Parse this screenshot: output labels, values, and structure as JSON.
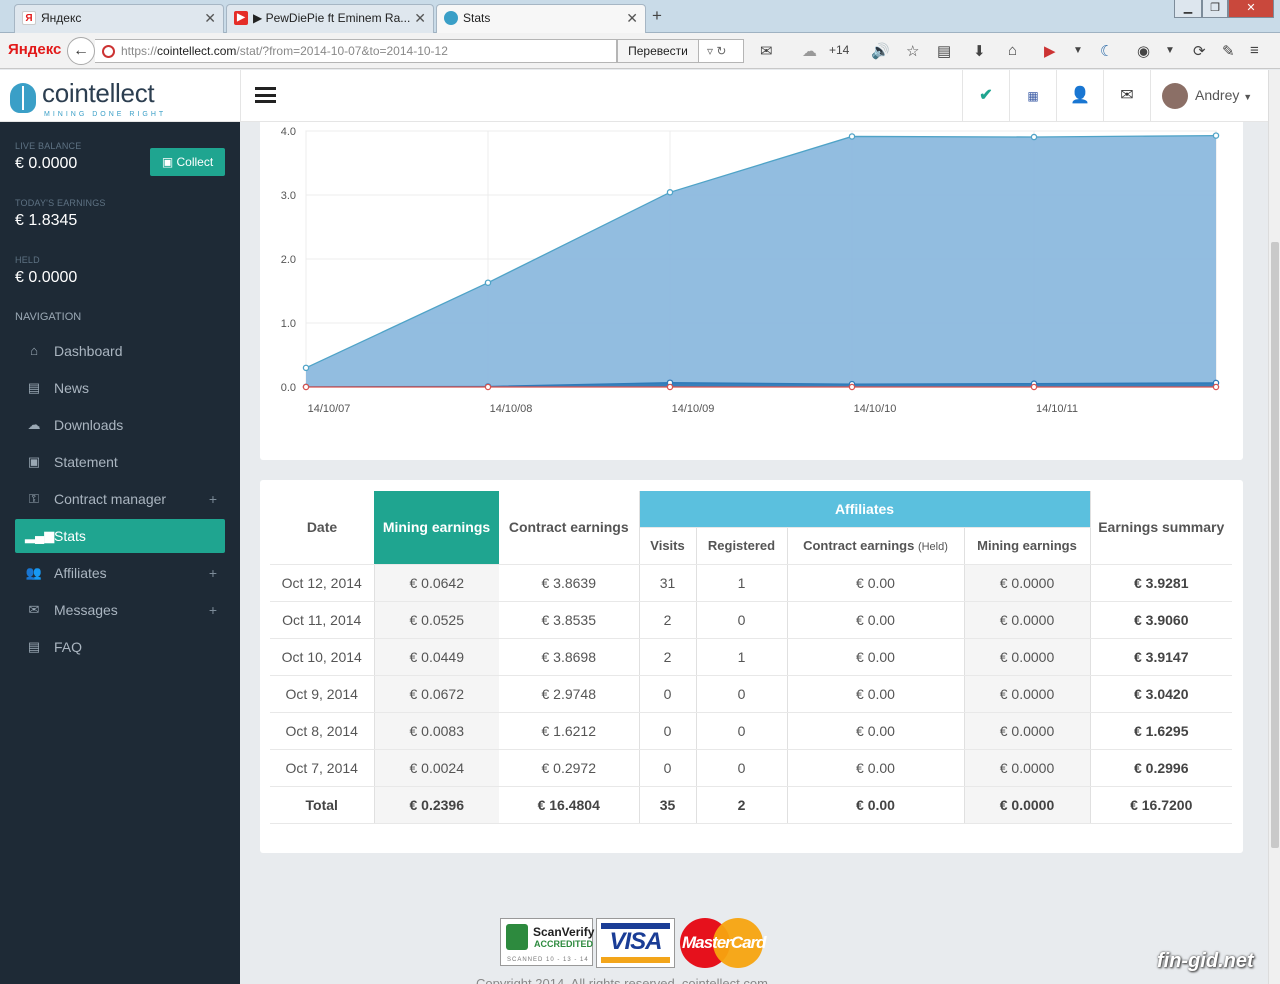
{
  "browser": {
    "tabs": [
      {
        "title": "Яндекс",
        "icon": "yandex-icon"
      },
      {
        "title": "▶ PewDiePie ft Eminem Ra...",
        "icon": "youtube-icon"
      },
      {
        "title": "Stats",
        "icon": "cointellect-icon"
      }
    ],
    "brand": "Яндекс",
    "url_prefix": "https://",
    "url_host": "cointellect.com",
    "url_path": "/stat/?from=2014-10-07&to=2014-10-12",
    "translate_label": "Перевести",
    "weather_temp": "+14"
  },
  "header": {
    "logo_name": "cointellect",
    "logo_tagline": "MINING DONE RIGHT",
    "user_name": "Andrey"
  },
  "sidebar": {
    "live_balance_label": "LIVE BALANCE",
    "live_balance_value": "€ 0.0000",
    "collect_label": "Collect",
    "today_label": "TODAY'S EARNINGS",
    "today_value": "€ 1.8345",
    "held_label": "HELD",
    "held_value": "€ 0.0000",
    "nav_label": "NAVIGATION",
    "items": [
      {
        "label": "Dashboard"
      },
      {
        "label": "News"
      },
      {
        "label": "Downloads"
      },
      {
        "label": "Statement"
      },
      {
        "label": "Contract manager"
      },
      {
        "label": "Stats"
      },
      {
        "label": "Affiliates"
      },
      {
        "label": "Messages"
      },
      {
        "label": "FAQ"
      }
    ]
  },
  "chart_data": {
    "type": "area",
    "x": [
      "14/10/07",
      "14/10/08",
      "14/10/09",
      "14/10/10",
      "14/10/11",
      "14/10/12"
    ],
    "x_tick_labels": [
      "14/10/07",
      "14/10/08",
      "14/10/09",
      "14/10/10",
      "14/10/11"
    ],
    "y_ticks": [
      "0.0",
      "1.0",
      "2.0",
      "3.0",
      "4.0"
    ],
    "ylim": [
      0,
      4.0
    ],
    "grid": true,
    "series": [
      {
        "values": [
          0.2996,
          1.6295,
          3.042,
          3.9147,
          3.906,
          3.9281
        ],
        "color": "#8cb9de",
        "stroke": "#4fa3c7"
      },
      {
        "values": [
          0.0024,
          0.0083,
          0.0672,
          0.0449,
          0.0525,
          0.0642
        ],
        "color": "#2f79b8",
        "stroke": "#2f79b8"
      },
      {
        "values": [
          0,
          0,
          0,
          0,
          0,
          0
        ],
        "color": "#d9534f",
        "stroke": "#d9534f"
      }
    ]
  },
  "table": {
    "headers": {
      "date": "Date",
      "mining": "Mining earnings",
      "contract": "Contract earnings",
      "affiliates": "Affiliates",
      "summary": "Earnings summary",
      "visits": "Visits",
      "registered": "Registered",
      "aff_contract": "Contract earnings",
      "aff_contract_note": "(Held)",
      "aff_mining": "Mining earnings"
    },
    "rows": [
      [
        "Oct 12, 2014",
        "€ 0.0642",
        "€ 3.8639",
        "31",
        "1",
        "€ 0.00",
        "€ 0.0000",
        "€ 3.9281"
      ],
      [
        "Oct 11, 2014",
        "€ 0.0525",
        "€ 3.8535",
        "2",
        "0",
        "€ 0.00",
        "€ 0.0000",
        "€ 3.9060"
      ],
      [
        "Oct 10, 2014",
        "€ 0.0449",
        "€ 3.8698",
        "2",
        "1",
        "€ 0.00",
        "€ 0.0000",
        "€ 3.9147"
      ],
      [
        "Oct 9, 2014",
        "€ 0.0672",
        "€ 2.9748",
        "0",
        "0",
        "€ 0.00",
        "€ 0.0000",
        "€ 3.0420"
      ],
      [
        "Oct 8, 2014",
        "€ 0.0083",
        "€ 1.6212",
        "0",
        "0",
        "€ 0.00",
        "€ 0.0000",
        "€ 1.6295"
      ],
      [
        "Oct 7, 2014",
        "€ 0.0024",
        "€ 0.2972",
        "0",
        "0",
        "€ 0.00",
        "€ 0.0000",
        "€ 0.2996"
      ]
    ],
    "total": [
      "Total",
      "€ 0.2396",
      "€ 16.4804",
      "35",
      "2",
      "€ 0.00",
      "€ 0.0000",
      "€ 16.7200"
    ]
  },
  "footer": {
    "scan_title": "ScanVerify",
    "scan_sub": "ACCREDITED",
    "scan_date": "SCANNED 10 - 13 - 14",
    "visa": "VISA",
    "mastercard": "MasterCard",
    "copyright": "Copyright 2014. All rights reserved. cointellect.com",
    "watermark": "fin-gid.net"
  }
}
